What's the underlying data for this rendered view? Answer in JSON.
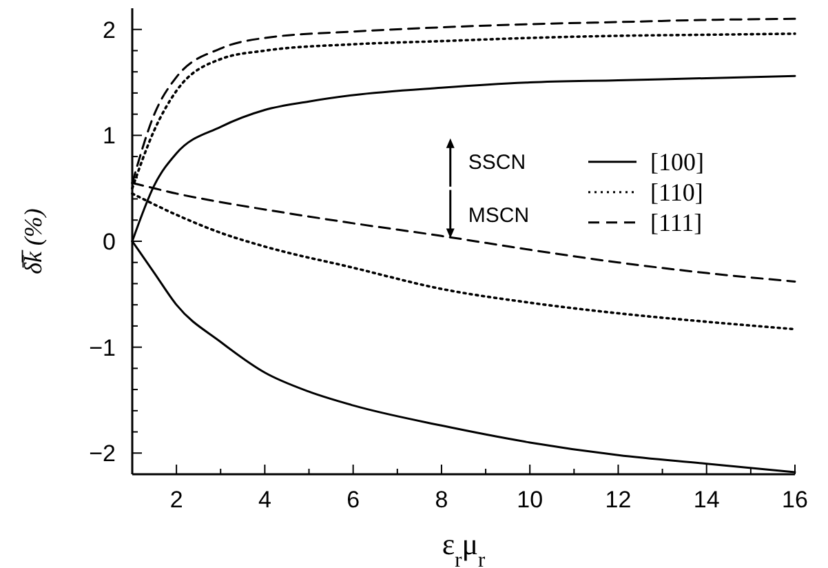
{
  "chart_data": {
    "type": "line",
    "xlabel": "ε$_{r}$μ$_{r}$",
    "ylabel": "δ̅k̅ (%)",
    "xlim": [
      1,
      16
    ],
    "ylim": [
      -2.2,
      2.2
    ],
    "xticks": [
      {
        "value": 1,
        "label": null
      },
      2,
      {
        "value": 3,
        "label": null
      },
      4,
      {
        "value": 5,
        "label": null
      },
      6,
      {
        "value": 7,
        "label": null
      },
      8,
      {
        "value": 9,
        "label": null
      },
      10,
      {
        "value": 11,
        "label": null
      },
      12,
      {
        "value": 13,
        "label": null
      },
      14,
      {
        "value": 15,
        "label": null
      },
      16
    ],
    "yticks": [
      -2,
      {
        "value": -1.8,
        "label": null
      },
      {
        "value": -1.6,
        "label": null
      },
      {
        "value": -1.4,
        "label": null
      },
      {
        "value": -1.2,
        "label": null
      },
      -1,
      {
        "value": -0.8,
        "label": null
      },
      {
        "value": -0.6,
        "label": null
      },
      {
        "value": -0.4,
        "label": null
      },
      {
        "value": -0.2,
        "label": null
      },
      0,
      {
        "value": 0.2,
        "label": null
      },
      {
        "value": 0.4,
        "label": null
      },
      {
        "value": 0.6,
        "label": null
      },
      {
        "value": 0.8,
        "label": null
      },
      1,
      {
        "value": 1.2,
        "label": null
      },
      {
        "value": 1.4,
        "label": null
      },
      {
        "value": 1.6,
        "label": null
      },
      {
        "value": 1.8,
        "label": null
      },
      2
    ],
    "grid": false,
    "legend": "right",
    "marker": "none",
    "annotations": [
      "SSCN",
      "MSCN"
    ],
    "series": [
      {
        "name": "[100]",
        "color": "#000000",
        "line_style": "solid",
        "x": [
          1,
          1.5,
          2,
          3,
          4,
          5,
          6,
          8,
          10,
          12,
          14,
          16
        ],
        "values": [
          0,
          0.53,
          0.83,
          1.08,
          1.24,
          1.32,
          1.38,
          1.45,
          1.5,
          1.52,
          1.54,
          1.56
        ]
      },
      {
        "name": "[110]",
        "color": "#000000",
        "line_style": "dotted",
        "x": [
          1,
          1.5,
          2,
          3,
          4,
          6,
          8,
          10,
          12,
          14,
          16
        ],
        "values": [
          0.5,
          1.05,
          1.42,
          1.72,
          1.8,
          1.86,
          1.89,
          1.92,
          1.94,
          1.95,
          1.96
        ]
      },
      {
        "name": "[111]",
        "color": "#000000",
        "line_style": "dashed",
        "x": [
          1,
          1.5,
          2,
          3,
          4,
          6,
          8,
          10,
          12,
          14,
          16
        ],
        "values": [
          0.55,
          1.2,
          1.55,
          1.82,
          1.92,
          1.98,
          2.02,
          2.05,
          2.07,
          2.09,
          2.1
        ]
      },
      {
        "color": "#000000",
        "line_style": "solid",
        "x": [
          1,
          1.5,
          2,
          3,
          4,
          5,
          6,
          8,
          10,
          12,
          14,
          16
        ],
        "values": [
          0,
          -0.3,
          -0.6,
          -0.95,
          -1.24,
          -1.42,
          -1.55,
          -1.74,
          -1.9,
          -2.02,
          -2.1,
          -2.18
        ]
      },
      {
        "color": "#000000",
        "line_style": "dotted",
        "x": [
          1,
          2,
          3,
          4,
          6,
          8,
          10,
          12,
          14,
          16
        ],
        "values": [
          0.45,
          0.25,
          0.08,
          -0.05,
          -0.25,
          -0.45,
          -0.58,
          -0.68,
          -0.76,
          -0.83
        ]
      },
      {
        "color": "#000000",
        "line_style": "dashed",
        "x": [
          1,
          1.3,
          2,
          3,
          4,
          6,
          8,
          10,
          12,
          14,
          16
        ],
        "values": [
          0.55,
          0.52,
          0.45,
          0.37,
          0.3,
          0.17,
          0.05,
          -0.08,
          -0.2,
          -0.3,
          -0.38
        ]
      }
    ]
  }
}
